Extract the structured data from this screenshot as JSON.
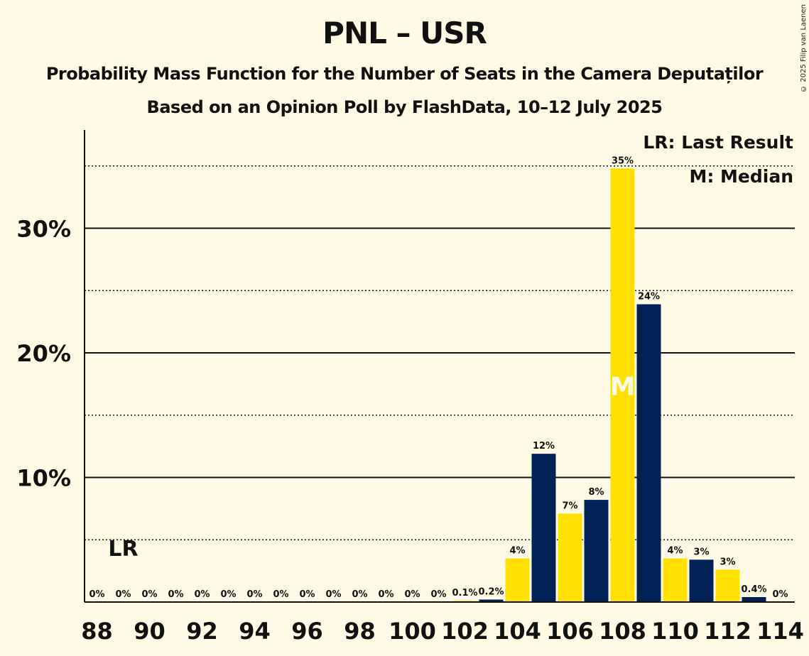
{
  "title": "PNL – USR",
  "subtitle": "Probability Mass Function for the Number of Seats in the Camera Deputaților",
  "source": "Based on an Opinion Poll by FlashData, 10–12 July 2025",
  "copyright": "© 2025 Filip van Laenen",
  "colors": {
    "background": "#FFFAE5",
    "yellow": "#FFE000",
    "navy": "#002257",
    "median_text": "#FFFAE5"
  },
  "chart_data": {
    "type": "bar",
    "categories": [
      88,
      89,
      90,
      91,
      92,
      93,
      94,
      95,
      96,
      97,
      98,
      99,
      100,
      101,
      102,
      103,
      104,
      105,
      106,
      107,
      108,
      109,
      110,
      111,
      112,
      113,
      114
    ],
    "values": [
      0,
      0,
      0,
      0,
      0,
      0,
      0,
      0,
      0,
      0,
      0,
      0,
      0,
      0,
      0.1,
      0.2,
      3.5,
      11.9,
      7.1,
      8.2,
      34.8,
      23.9,
      3.5,
      3.4,
      2.6,
      0.4,
      0
    ],
    "labels": [
      "0%",
      "0%",
      "0%",
      "0%",
      "0%",
      "0%",
      "0%",
      "0%",
      "0%",
      "0%",
      "0%",
      "0%",
      "0%",
      "0%",
      "0.1%",
      "0.2%",
      "4%",
      "12%",
      "7%",
      "8%",
      "35%",
      "24%",
      "4%",
      "3%",
      "3%",
      "0.4%",
      "0%"
    ],
    "bar_colors": [
      "yellow",
      "navy",
      "yellow",
      "navy",
      "yellow",
      "navy",
      "yellow",
      "navy",
      "yellow",
      "navy",
      "yellow",
      "navy",
      "yellow",
      "navy",
      "yellow",
      "navy",
      "yellow",
      "navy",
      "yellow",
      "navy",
      "yellow",
      "navy",
      "yellow",
      "navy",
      "yellow",
      "navy",
      "yellow"
    ],
    "x_tick_labels": [
      "88",
      "90",
      "92",
      "94",
      "96",
      "98",
      "100",
      "102",
      "104",
      "106",
      "108",
      "110",
      "112",
      "114"
    ],
    "y_ticks": [
      10,
      20,
      30
    ],
    "y_tick_labels": [
      "10%",
      "20%",
      "30%"
    ],
    "y_minor_ticks": [
      5,
      15,
      25,
      35
    ],
    "ylim": [
      0,
      38
    ],
    "last_result": {
      "seats": 89,
      "label": "LR"
    },
    "median": {
      "seats": 108,
      "label": "M"
    },
    "legend": [
      "LR: Last Result",
      "M: Median"
    ],
    "legend_position": "top-right"
  }
}
